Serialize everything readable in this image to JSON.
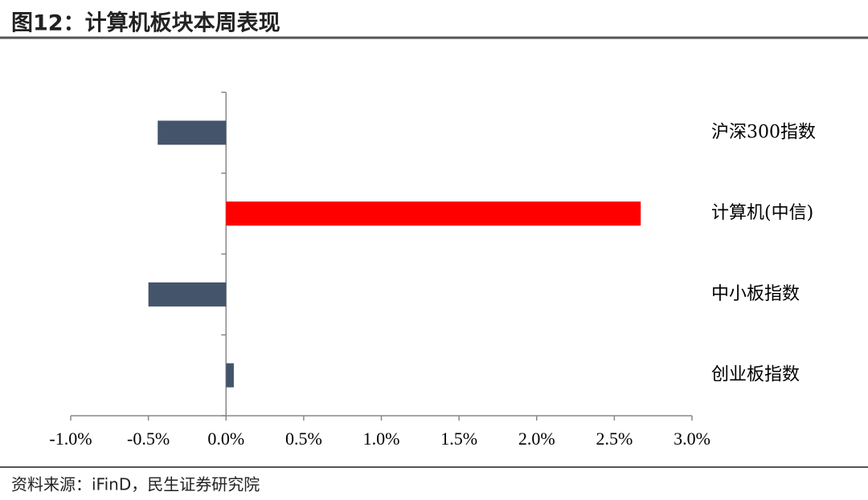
{
  "chart_data": {
    "type": "hbar",
    "title": "图12：计算机板块本周表现",
    "source": "资料来源：iFinD，民生证券研究院",
    "categories": [
      "沪深300指数",
      "计算机(中信)",
      "中小板指数",
      "创业板指数"
    ],
    "values": [
      -0.44,
      2.67,
      -0.5,
      0.05
    ],
    "colors": [
      "#44546a",
      "#ff0000",
      "#44546a",
      "#44546a"
    ],
    "xlim": [
      -1.0,
      3.0
    ],
    "xticks": [
      {
        "value": -1.0,
        "label": "-1.0%"
      },
      {
        "value": -0.5,
        "label": "-0.5%"
      },
      {
        "value": 0,
        "label": "0.0%"
      },
      {
        "value": 0.5,
        "label": "0.5%"
      },
      {
        "value": 1.0,
        "label": "1.0%"
      },
      {
        "value": 1.5,
        "label": "1.5%"
      },
      {
        "value": 2.0,
        "label": "2.0%"
      },
      {
        "value": 2.5,
        "label": "2.5%"
      },
      {
        "value": 3.0,
        "label": "3.0%"
      }
    ]
  }
}
